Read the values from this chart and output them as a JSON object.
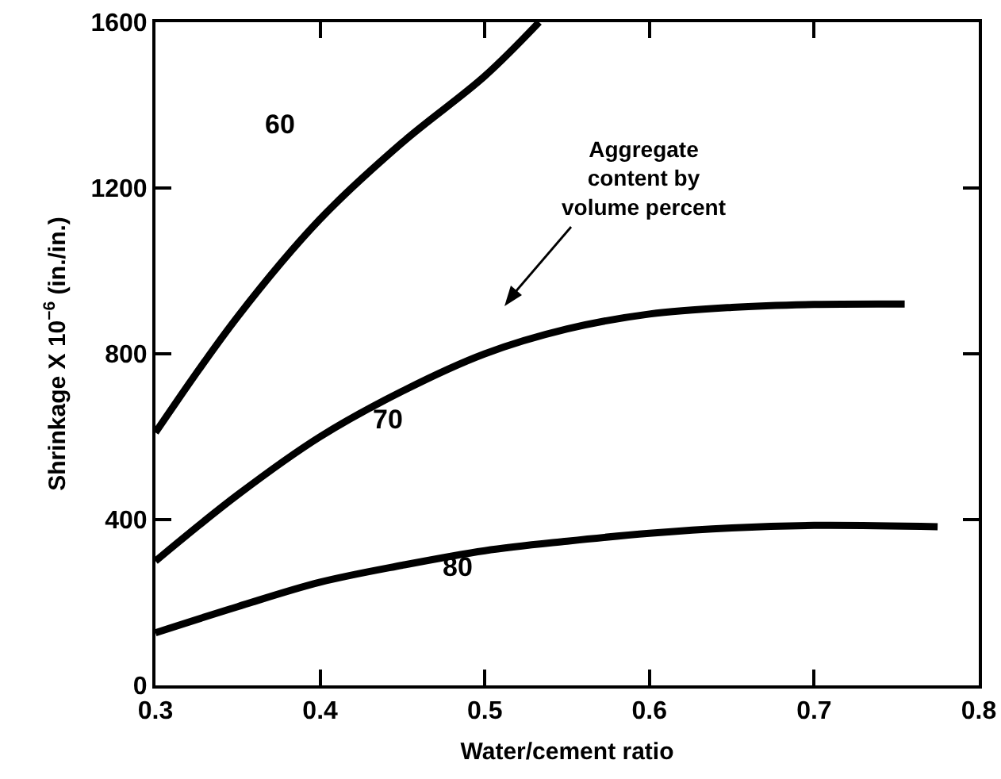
{
  "chart_data": {
    "type": "line",
    "xlabel": "Water/cement ratio",
    "ylabel": "Shrinkage X 10$^{−6}$ (in./in.)",
    "xlim": [
      0.3,
      0.8
    ],
    "xticks": [
      0.3,
      0.4,
      0.5,
      0.6,
      0.7,
      0.8
    ],
    "ylim": [
      0,
      1600
    ],
    "yticks": [
      0,
      400,
      800,
      1200,
      1600
    ],
    "grid": false,
    "legend": false,
    "marker": "none",
    "line_style": "solid",
    "series": [
      {
        "name": "60",
        "color": "#000000",
        "x": [
          0.3,
          0.35,
          0.4,
          0.45,
          0.5,
          0.533
        ],
        "values": [
          610,
          890,
          1125,
          1310,
          1470,
          1600
        ]
      },
      {
        "name": "70",
        "color": "#000000",
        "x": [
          0.3,
          0.35,
          0.4,
          0.45,
          0.5,
          0.55,
          0.6,
          0.65,
          0.7,
          0.755
        ],
        "values": [
          300,
          460,
          600,
          710,
          800,
          860,
          896,
          912,
          919,
          920
        ]
      },
      {
        "name": "80",
        "color": "#000000",
        "x": [
          0.3,
          0.35,
          0.4,
          0.45,
          0.5,
          0.55,
          0.6,
          0.65,
          0.7,
          0.775
        ],
        "values": [
          127,
          190,
          249,
          290,
          325,
          348,
          367,
          380,
          386,
          383
        ]
      }
    ],
    "annotations": [
      "Aggregate content by volume percent"
    ]
  }
}
